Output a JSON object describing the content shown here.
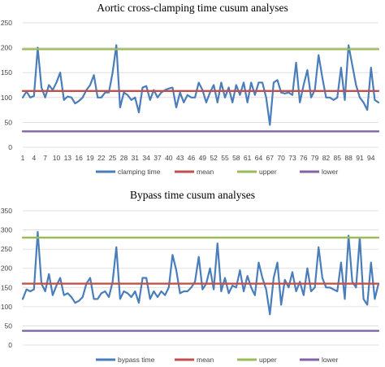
{
  "chart_data": [
    {
      "type": "line",
      "title": "Aortic cross-clamping time cusum analyses",
      "xlabel": "",
      "ylabel": "",
      "ylim": [
        0,
        250
      ],
      "yticks": [
        0,
        50,
        100,
        150,
        200,
        250
      ],
      "xlim": [
        1,
        96
      ],
      "xticks": [
        1,
        4,
        7,
        10,
        13,
        16,
        19,
        22,
        25,
        28,
        31,
        34,
        37,
        40,
        43,
        46,
        49,
        52,
        55,
        58,
        61,
        64,
        67,
        70,
        73,
        76,
        79,
        82,
        85,
        88,
        91,
        94
      ],
      "grid": true,
      "legend": "bottom",
      "series": [
        {
          "name": "clamping time",
          "color": "#4a7ebb",
          "x": [
            1,
            2,
            3,
            4,
            5,
            6,
            7,
            8,
            9,
            10,
            11,
            12,
            13,
            14,
            15,
            16,
            17,
            18,
            19,
            20,
            21,
            22,
            23,
            24,
            25,
            26,
            27,
            28,
            29,
            30,
            31,
            32,
            33,
            34,
            35,
            36,
            37,
            38,
            39,
            40,
            41,
            42,
            43,
            44,
            45,
            46,
            47,
            48,
            49,
            50,
            51,
            52,
            53,
            54,
            55,
            56,
            57,
            58,
            59,
            60,
            61,
            62,
            63,
            64,
            65,
            66,
            67,
            68,
            69,
            70,
            71,
            72,
            73,
            74,
            75,
            76,
            77,
            78,
            79,
            80,
            81,
            82,
            83,
            84,
            85,
            86,
            87,
            88,
            89,
            90,
            91,
            92,
            93,
            94,
            95,
            96
          ],
          "values": [
            100,
            112,
            100,
            103,
            200,
            120,
            100,
            125,
            115,
            130,
            150,
            95,
            102,
            100,
            88,
            93,
            100,
            115,
            125,
            145,
            100,
            100,
            110,
            110,
            150,
            205,
            80,
            110,
            105,
            95,
            100,
            70,
            120,
            123,
            95,
            115,
            100,
            110,
            115,
            118,
            120,
            80,
            110,
            90,
            105,
            100,
            100,
            130,
            115,
            90,
            110,
            125,
            90,
            130,
            100,
            120,
            90,
            125,
            105,
            130,
            90,
            130,
            105,
            130,
            130,
            100,
            45,
            130,
            135,
            110,
            108,
            110,
            105,
            170,
            90,
            125,
            155,
            100,
            115,
            185,
            140,
            100,
            100,
            95,
            100,
            160,
            95,
            205,
            165,
            125,
            100,
            90,
            75,
            160,
            95,
            90
          ]
        },
        {
          "name": "mean",
          "color": "#c0504d",
          "x": [
            1,
            96
          ],
          "values": [
            113,
            113
          ]
        },
        {
          "name": "upper",
          "color": "#9bbb59",
          "x": [
            1,
            96
          ],
          "values": [
            197,
            197
          ]
        },
        {
          "name": "lower",
          "color": "#8064a2",
          "x": [
            1,
            96
          ],
          "values": [
            32,
            32
          ]
        }
      ]
    },
    {
      "type": "line",
      "title": "Bypass time cusum analyses",
      "xlabel": "",
      "ylabel": "",
      "ylim": [
        0,
        350
      ],
      "yticks": [
        0,
        50,
        100,
        150,
        200,
        250,
        300,
        350
      ],
      "xlim": [
        1,
        96
      ],
      "xticks": [
        1,
        4,
        7,
        10,
        13,
        16,
        19,
        22,
        25,
        28,
        31,
        34,
        37,
        40,
        43,
        46,
        49,
        52,
        55,
        58,
        61,
        64,
        67,
        70,
        73,
        76,
        79,
        82,
        85,
        88,
        91,
        94
      ],
      "grid": true,
      "legend": "bottom",
      "series": [
        {
          "name": "bypass time",
          "color": "#4a7ebb",
          "x": [
            1,
            2,
            3,
            4,
            5,
            6,
            7,
            8,
            9,
            10,
            11,
            12,
            13,
            14,
            15,
            16,
            17,
            18,
            19,
            20,
            21,
            22,
            23,
            24,
            25,
            26,
            27,
            28,
            29,
            30,
            31,
            32,
            33,
            34,
            35,
            36,
            37,
            38,
            39,
            40,
            41,
            42,
            43,
            44,
            45,
            46,
            47,
            48,
            49,
            50,
            51,
            52,
            53,
            54,
            55,
            56,
            57,
            58,
            59,
            60,
            61,
            62,
            63,
            64,
            65,
            66,
            67,
            68,
            69,
            70,
            71,
            72,
            73,
            74,
            75,
            76,
            77,
            78,
            79,
            80,
            81,
            82,
            83,
            84,
            85,
            86,
            87,
            88,
            89,
            90,
            91,
            92,
            93,
            94,
            95,
            96
          ],
          "values": [
            120,
            145,
            140,
            145,
            295,
            160,
            140,
            185,
            130,
            155,
            175,
            130,
            135,
            125,
            110,
            115,
            125,
            160,
            175,
            120,
            120,
            135,
            140,
            125,
            165,
            255,
            120,
            140,
            135,
            125,
            140,
            110,
            175,
            175,
            120,
            140,
            125,
            140,
            130,
            150,
            235,
            195,
            135,
            140,
            140,
            150,
            165,
            230,
            145,
            160,
            200,
            145,
            265,
            140,
            175,
            135,
            155,
            150,
            195,
            140,
            180,
            150,
            130,
            215,
            175,
            145,
            80,
            175,
            215,
            105,
            170,
            150,
            190,
            140,
            165,
            130,
            200,
            140,
            150,
            255,
            175,
            150,
            150,
            145,
            140,
            215,
            120,
            285,
            165,
            150,
            280,
            120,
            105,
            215,
            120,
            160
          ]
        },
        {
          "name": "mean",
          "color": "#c0504d",
          "x": [
            1,
            96
          ],
          "values": [
            160,
            160
          ]
        },
        {
          "name": "upper",
          "color": "#9bbb59",
          "x": [
            1,
            96
          ],
          "values": [
            280,
            280
          ]
        },
        {
          "name": "lower",
          "color": "#8064a2",
          "x": [
            1,
            96
          ],
          "values": [
            37,
            37
          ]
        }
      ]
    }
  ]
}
